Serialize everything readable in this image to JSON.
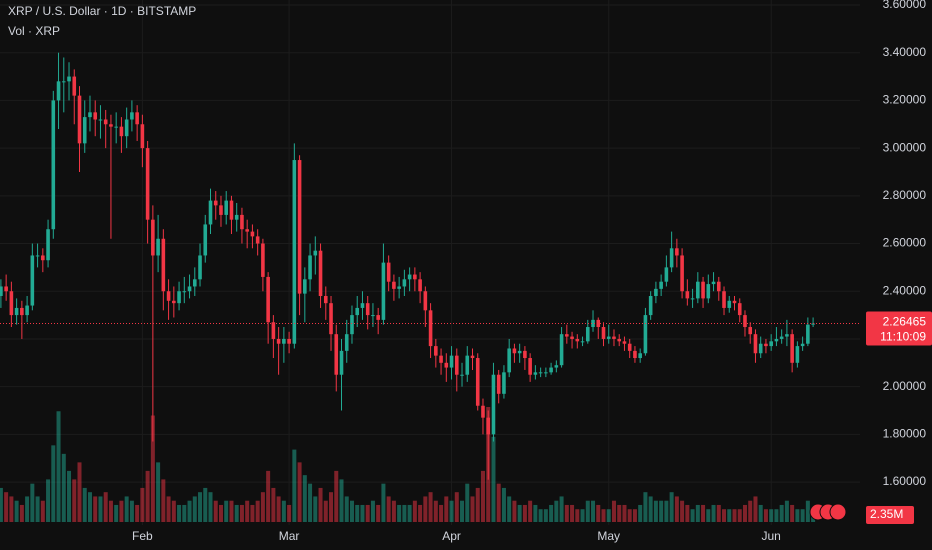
{
  "chart_data": {
    "type": "candlestick",
    "title": "XRP / U.S. Dollar · 1D · BITSTAMP",
    "countdown": "11:10:09",
    "categories": [
      null,
      null,
      null,
      null,
      null,
      null,
      null,
      null,
      null,
      null,
      null,
      null,
      null,
      null,
      null,
      null,
      null,
      null,
      null,
      null,
      null,
      null,
      null,
      null,
      null,
      null,
      null,
      "Feb",
      null,
      null,
      null,
      null,
      null,
      null,
      null,
      null,
      null,
      null,
      null,
      null,
      null,
      null,
      null,
      null,
      null,
      null,
      null,
      null,
      null,
      null,
      null,
      null,
      null,
      null,
      null,
      "Mar",
      null,
      null,
      null,
      null,
      null,
      null,
      null,
      null,
      null,
      null,
      null,
      null,
      null,
      null,
      null,
      null,
      null,
      null,
      null,
      null,
      null,
      null,
      null,
      null,
      null,
      null,
      null,
      null,
      null,
      null,
      "Apr",
      null,
      null,
      null,
      null,
      null,
      null,
      null,
      null,
      null,
      null,
      null,
      null,
      null,
      null,
      null,
      null,
      null,
      null,
      null,
      null,
      null,
      null,
      null,
      null,
      null,
      null,
      null,
      null,
      null,
      "May",
      null,
      null,
      null,
      null,
      null,
      null,
      null,
      null,
      null,
      null,
      null,
      null,
      null,
      null,
      null,
      null,
      null,
      null,
      null,
      null,
      null,
      null,
      null,
      null,
      null,
      null,
      null,
      null,
      null,
      null,
      "Jun",
      null,
      null,
      null,
      null,
      null,
      null,
      null,
      null
    ],
    "open": [
      2.38,
      2.42,
      2.4,
      2.3,
      2.33,
      2.3,
      2.34,
      2.55,
      2.55,
      2.53,
      2.66,
      3.2,
      3.28,
      3.28,
      3.3,
      3.22,
      3.02,
      3.13,
      3.15,
      3.12,
      3.12,
      3.1,
      3.09,
      3.09,
      3.05,
      3.12,
      3.15,
      3.1,
      3.0,
      2.7,
      2.55,
      2.62,
      2.4,
      2.36,
      2.35,
      2.4,
      2.4,
      2.42,
      2.45,
      2.55,
      2.68,
      2.78,
      2.76,
      2.72,
      2.78,
      2.7,
      2.72,
      2.66,
      2.65,
      2.63,
      2.6,
      2.46,
      2.27,
      2.2,
      2.18,
      2.2,
      2.18,
      2.95,
      2.39,
      2.45,
      2.55,
      2.57,
      2.38,
      2.35,
      2.22,
      2.05,
      2.15,
      2.22,
      2.3,
      2.33,
      2.35,
      2.3,
      2.3,
      2.28,
      2.52,
      2.44,
      2.41,
      2.42,
      2.45,
      2.47,
      2.45,
      2.4,
      2.32,
      2.17,
      2.13,
      2.1,
      2.08,
      2.13,
      2.05,
      2.05,
      2.13,
      2.12,
      1.92,
      1.87,
      1.8,
      2.05,
      1.97,
      2.06,
      2.16,
      2.14,
      2.15,
      2.12,
      2.05,
      2.06,
      2.06,
      2.06,
      2.08,
      2.09,
      2.22,
      2.21,
      2.2,
      2.19,
      2.19,
      2.25,
      2.28,
      2.25,
      2.2,
      2.21,
      2.2,
      2.19,
      2.18,
      2.15,
      2.12,
      2.14,
      2.3,
      2.38,
      2.41,
      2.44,
      2.5,
      2.58,
      2.55,
      2.4,
      2.37,
      2.37,
      2.44,
      2.37,
      2.43,
      2.44,
      2.4,
      2.33,
      2.36,
      2.35,
      2.3,
      2.25,
      2.22,
      2.14,
      2.18,
      2.17,
      2.19,
      2.2,
      2.21,
      2.22,
      2.1,
      2.17,
      2.18,
      2.26
    ],
    "high": [
      2.45,
      2.47,
      2.44,
      2.37,
      2.36,
      2.38,
      2.6,
      2.6,
      2.58,
      2.7,
      3.24,
      3.4,
      3.38,
      3.36,
      3.33,
      3.26,
      3.2,
      3.22,
      3.2,
      3.18,
      3.16,
      3.14,
      3.15,
      3.13,
      3.17,
      3.2,
      3.18,
      3.14,
      3.03,
      2.76,
      2.72,
      2.66,
      2.45,
      2.42,
      2.44,
      2.46,
      2.47,
      2.5,
      2.6,
      2.72,
      2.83,
      2.82,
      2.8,
      2.82,
      2.8,
      2.77,
      2.75,
      2.7,
      2.68,
      2.66,
      2.62,
      2.48,
      2.3,
      2.25,
      2.25,
      2.23,
      3.02,
      2.97,
      2.5,
      2.6,
      2.63,
      2.6,
      2.42,
      2.38,
      2.26,
      2.2,
      2.28,
      2.34,
      2.38,
      2.4,
      2.38,
      2.35,
      2.33,
      2.6,
      2.55,
      2.47,
      2.46,
      2.49,
      2.5,
      2.5,
      2.48,
      2.42,
      2.35,
      2.2,
      2.16,
      2.14,
      2.17,
      2.16,
      2.1,
      2.17,
      2.16,
      2.14,
      1.95,
      1.9,
      2.1,
      2.07,
      2.09,
      2.2,
      2.18,
      2.18,
      2.17,
      2.14,
      2.09,
      2.08,
      2.08,
      2.1,
      2.11,
      2.25,
      2.26,
      2.23,
      2.22,
      2.21,
      2.28,
      2.32,
      2.29,
      2.27,
      2.26,
      2.24,
      2.22,
      2.21,
      2.2,
      2.17,
      2.16,
      2.33,
      2.4,
      2.44,
      2.47,
      2.55,
      2.65,
      2.62,
      2.58,
      2.45,
      2.41,
      2.48,
      2.46,
      2.47,
      2.48,
      2.46,
      2.42,
      2.38,
      2.38,
      2.37,
      2.32,
      2.27,
      2.24,
      2.21,
      2.2,
      2.22,
      2.25,
      2.24,
      2.28,
      2.24,
      2.19,
      2.21,
      2.29,
      2.29
    ],
    "low": [
      2.33,
      2.36,
      2.25,
      2.26,
      2.2,
      2.27,
      2.32,
      2.5,
      2.48,
      2.5,
      2.62,
      3.08,
      3.15,
      3.2,
      3.1,
      2.9,
      2.98,
      3.07,
      3.05,
      3.04,
      3.0,
      2.62,
      3.02,
      2.98,
      3.0,
      3.07,
      3.03,
      2.92,
      2.6,
      1.77,
      2.48,
      2.32,
      2.28,
      2.29,
      2.32,
      2.35,
      2.37,
      2.38,
      2.42,
      2.52,
      2.64,
      2.7,
      2.67,
      2.68,
      2.64,
      2.65,
      2.6,
      2.58,
      2.58,
      2.55,
      2.4,
      2.18,
      2.12,
      2.05,
      2.1,
      2.14,
      2.16,
      2.3,
      2.27,
      2.4,
      2.47,
      2.33,
      2.28,
      2.15,
      1.98,
      1.9,
      2.1,
      2.18,
      2.25,
      2.28,
      2.24,
      2.25,
      2.22,
      2.26,
      2.4,
      2.36,
      2.37,
      2.38,
      2.4,
      2.4,
      2.35,
      2.25,
      2.12,
      2.08,
      2.05,
      2.02,
      2.03,
      1.98,
      2.0,
      2.02,
      2.07,
      1.9,
      1.8,
      1.61,
      1.77,
      1.93,
      1.95,
      2.04,
      2.1,
      2.1,
      2.07,
      2.02,
      2.03,
      2.04,
      2.04,
      2.05,
      2.06,
      2.08,
      2.18,
      2.16,
      2.16,
      2.17,
      2.18,
      2.23,
      2.2,
      2.17,
      2.18,
      2.17,
      2.17,
      2.15,
      2.12,
      2.1,
      2.1,
      2.13,
      2.28,
      2.35,
      2.38,
      2.42,
      2.48,
      2.5,
      2.37,
      2.34,
      2.33,
      2.35,
      2.33,
      2.35,
      2.4,
      2.36,
      2.3,
      2.31,
      2.32,
      2.27,
      2.21,
      2.18,
      2.1,
      2.12,
      2.14,
      2.15,
      2.17,
      2.18,
      2.17,
      2.06,
      2.08,
      2.15,
      2.17,
      2.25
    ],
    "close": [
      2.42,
      2.4,
      2.3,
      2.33,
      2.3,
      2.34,
      2.55,
      2.55,
      2.53,
      2.66,
      3.2,
      3.28,
      3.28,
      3.3,
      3.22,
      3.02,
      3.13,
      3.15,
      3.12,
      3.12,
      3.1,
      3.09,
      3.09,
      3.05,
      3.12,
      3.15,
      3.1,
      3.0,
      2.7,
      2.55,
      2.62,
      2.4,
      2.36,
      2.35,
      2.4,
      2.4,
      2.42,
      2.45,
      2.55,
      2.68,
      2.78,
      2.76,
      2.72,
      2.78,
      2.7,
      2.72,
      2.66,
      2.65,
      2.63,
      2.6,
      2.46,
      2.27,
      2.2,
      2.18,
      2.2,
      2.18,
      2.95,
      2.39,
      2.45,
      2.55,
      2.57,
      2.38,
      2.35,
      2.22,
      2.05,
      2.15,
      2.22,
      2.3,
      2.33,
      2.35,
      2.3,
      2.3,
      2.28,
      2.52,
      2.44,
      2.41,
      2.42,
      2.45,
      2.47,
      2.45,
      2.4,
      2.32,
      2.17,
      2.13,
      2.1,
      2.08,
      2.13,
      2.05,
      2.05,
      2.13,
      2.12,
      1.92,
      1.87,
      1.8,
      2.05,
      1.97,
      2.06,
      2.16,
      2.14,
      2.15,
      2.12,
      2.05,
      2.06,
      2.06,
      2.06,
      2.08,
      2.09,
      2.22,
      2.21,
      2.2,
      2.19,
      2.19,
      2.25,
      2.28,
      2.25,
      2.2,
      2.21,
      2.2,
      2.19,
      2.18,
      2.15,
      2.12,
      2.14,
      2.3,
      2.38,
      2.41,
      2.44,
      2.5,
      2.58,
      2.55,
      2.4,
      2.37,
      2.37,
      2.44,
      2.37,
      2.43,
      2.44,
      2.4,
      2.33,
      2.36,
      2.35,
      2.3,
      2.25,
      2.22,
      2.14,
      2.18,
      2.17,
      2.19,
      2.2,
      2.21,
      2.22,
      2.1,
      2.17,
      2.18,
      2.26,
      2.26465
    ],
    "up_color": "#22ab94",
    "down_color": "#f23645",
    "ylim": [
      1.42,
      3.6
    ],
    "yticks": [
      {
        "value": 1.6,
        "label": "1.60000"
      },
      {
        "value": 1.8,
        "label": "1.80000"
      },
      {
        "value": 2.0,
        "label": "2.00000"
      },
      {
        "value": 2.2,
        "label": "2.20000"
      },
      {
        "value": 2.4,
        "label": "2.40000"
      },
      {
        "value": 2.6,
        "label": "2.60000"
      },
      {
        "value": 2.8,
        "label": "2.80000"
      },
      {
        "value": 3.0,
        "label": "3.00000"
      },
      {
        "value": 3.2,
        "label": "3.20000"
      },
      {
        "value": 3.4,
        "label": "3.40000"
      },
      {
        "value": 3.6,
        "label": "3.60000"
      }
    ],
    "grid": true,
    "volume": {
      "name": "Vol · XRP",
      "values": [
        8,
        7,
        6,
        5,
        4,
        6,
        9,
        6,
        5,
        10,
        18,
        26,
        16,
        12,
        10,
        14,
        8,
        7,
        6,
        6,
        7,
        5,
        4,
        5,
        6,
        5,
        4,
        8,
        12,
        25,
        14,
        10,
        6,
        5,
        4,
        4,
        5,
        6,
        7,
        8,
        7,
        5,
        4,
        5,
        5,
        4,
        4,
        5,
        4,
        5,
        7,
        12,
        8,
        6,
        5,
        4,
        17,
        14,
        11,
        9,
        6,
        8,
        5,
        7,
        12,
        10,
        6,
        5,
        4,
        4,
        4,
        5,
        4,
        9,
        6,
        5,
        4,
        4,
        4,
        5,
        4,
        6,
        7,
        5,
        4,
        6,
        5,
        7,
        5,
        9,
        6,
        8,
        12,
        27,
        20,
        9,
        8,
        6,
        5,
        4,
        4,
        5,
        4,
        3,
        3,
        4,
        5,
        6,
        4,
        4,
        3,
        3,
        5,
        5,
        4,
        3,
        3,
        5,
        4,
        4,
        3,
        3,
        4,
        7,
        6,
        5,
        5,
        5,
        7,
        6,
        5,
        4,
        3,
        4,
        4,
        3,
        4,
        4,
        3,
        3,
        3,
        3,
        4,
        5,
        6,
        4,
        3,
        3,
        3,
        4,
        5,
        4,
        3,
        3,
        5,
        2.35
      ],
      "value_labels": [
        null,
        null,
        null,
        null,
        null,
        null,
        null,
        null,
        null,
        null,
        null,
        null,
        null,
        null,
        null,
        null,
        null,
        null,
        null,
        null,
        null,
        null,
        null,
        null,
        null,
        null,
        null,
        null,
        null,
        null,
        null,
        null,
        null,
        null,
        null,
        null,
        null,
        null,
        null,
        null,
        null,
        null,
        null,
        null,
        null,
        null,
        null,
        null,
        null,
        null,
        null,
        null,
        null,
        null,
        null,
        null,
        null,
        null,
        null,
        null,
        null,
        null,
        null,
        null,
        null,
        null,
        null,
        null,
        null,
        null,
        null,
        null,
        null,
        null,
        null,
        null,
        null,
        null,
        null,
        null,
        null,
        null,
        null,
        null,
        null,
        null,
        null,
        null,
        null,
        null,
        null,
        null,
        null,
        null,
        null,
        null,
        null,
        null,
        null,
        null,
        null,
        null,
        null,
        null,
        null,
        null,
        null,
        null,
        null,
        null,
        null,
        null,
        null,
        null,
        null,
        null,
        null,
        null,
        null,
        null,
        null,
        null,
        null,
        null,
        null,
        null,
        null,
        null,
        null,
        null,
        null,
        null,
        null,
        null,
        null,
        null,
        null,
        null,
        null,
        null,
        null,
        null,
        null,
        null,
        null,
        null,
        null,
        null,
        null,
        null,
        null,
        null,
        null,
        null,
        null,
        "2.35M"
      ]
    }
  }
}
